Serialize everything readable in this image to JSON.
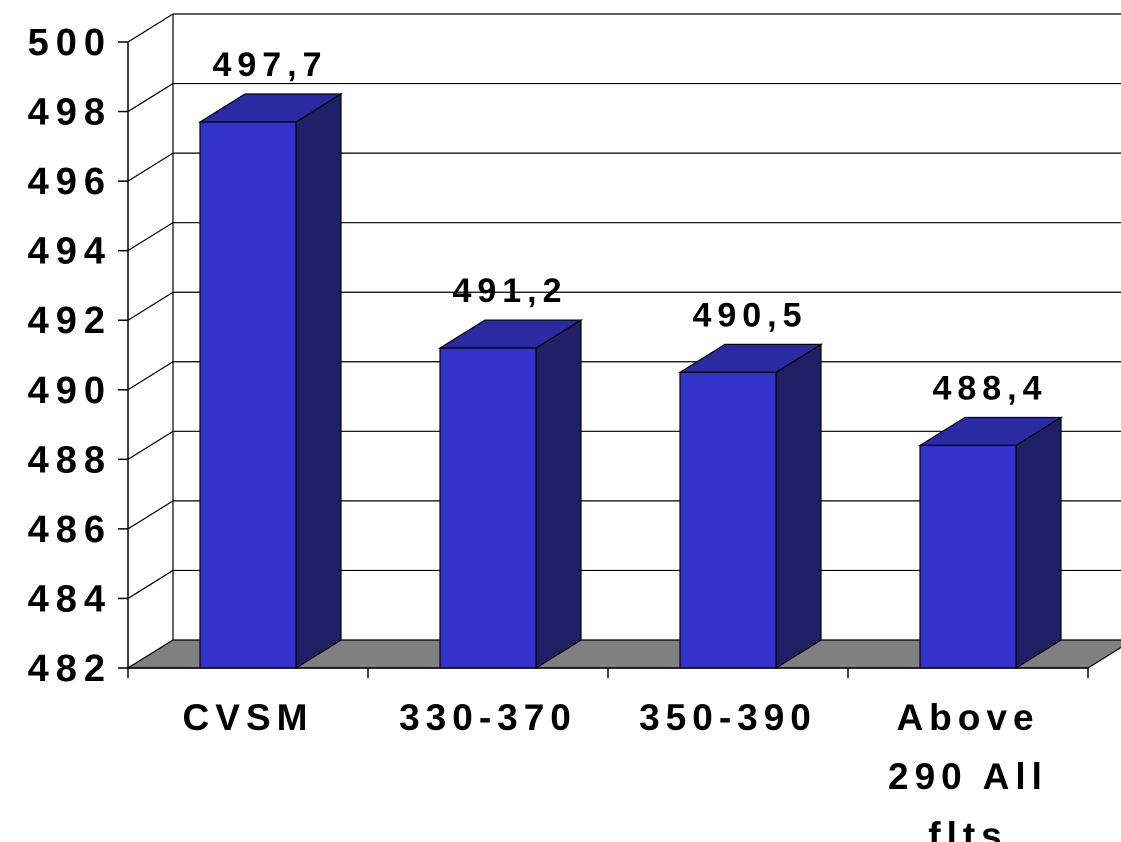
{
  "chart_data": {
    "type": "bar",
    "categories": [
      [
        "CVSM"
      ],
      [
        "330-370"
      ],
      [
        "350-390"
      ],
      [
        "Above",
        "290 All",
        "flts"
      ]
    ],
    "values": [
      497.7,
      491.2,
      490.5,
      488.4
    ],
    "data_labels": [
      "497,7",
      "491,2",
      "490,5",
      "488,4"
    ],
    "title": "",
    "xlabel": "",
    "ylabel": "",
    "ylim": [
      482,
      500
    ],
    "yticks": [
      482,
      484,
      486,
      488,
      490,
      492,
      494,
      496,
      498,
      500
    ],
    "grid": true,
    "legend": "none",
    "three_d": true,
    "colors": {
      "bar_front": "#3333cc",
      "bar_side": "#1f1f66",
      "bar_top": "#2a2aa3",
      "floor": "#808080",
      "grid": "#000000"
    }
  }
}
